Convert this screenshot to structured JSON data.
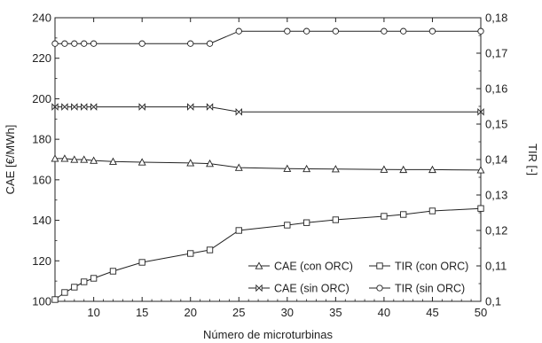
{
  "chart_data": {
    "type": "line",
    "title": "",
    "xlabel": "Número de microturbinas",
    "ylabel_left": "CAE [€/MWh]",
    "ylabel_right": "TIR [-]",
    "xlim": [
      6,
      50
    ],
    "ylim_left": [
      100,
      240
    ],
    "ylim_right": [
      0.1,
      0.18
    ],
    "x_ticks": [
      10,
      15,
      20,
      25,
      30,
      35,
      40,
      45,
      50
    ],
    "y_left_ticks": [
      100,
      120,
      140,
      160,
      180,
      200,
      220,
      240
    ],
    "y_right_ticks": [
      "0,1",
      "0,11",
      "0,12",
      "0,13",
      "0,14",
      "0,15",
      "0,16",
      "0,17",
      "0,18"
    ],
    "grid": false,
    "legend": "bottom-right",
    "series": [
      {
        "name": "CAE (con ORC)",
        "axis": "left",
        "marker": "triangle",
        "x": [
          6,
          7,
          8,
          9,
          10,
          12,
          15,
          20,
          22,
          25,
          30,
          32,
          35,
          40,
          42,
          45,
          50
        ],
        "y": [
          170.5,
          170.5,
          170,
          170,
          169.5,
          169,
          168.7,
          168.3,
          168,
          166,
          165.5,
          165.4,
          165.3,
          165.1,
          165,
          165,
          164.8
        ]
      },
      {
        "name": "TIR (con ORC)",
        "axis": "right",
        "marker": "square",
        "x": [
          6,
          7,
          8,
          9,
          10,
          12,
          15,
          20,
          22,
          25,
          30,
          32,
          35,
          40,
          42,
          45,
          50
        ],
        "y": [
          0.1005,
          0.1025,
          0.104,
          0.1055,
          0.1065,
          0.1085,
          0.111,
          0.1135,
          0.1145,
          0.12,
          0.1215,
          0.1222,
          0.123,
          0.124,
          0.1245,
          0.1255,
          0.1262
        ]
      },
      {
        "name": "CAE (sin ORC)",
        "axis": "left",
        "marker": "bowtie",
        "x": [
          6,
          7,
          8,
          9,
          10,
          15,
          20,
          22,
          25,
          50
        ],
        "y": [
          196,
          196,
          196,
          196,
          196,
          196,
          196,
          196,
          193.5,
          193.5
        ]
      },
      {
        "name": "TIR (sin ORC)",
        "axis": "right",
        "marker": "circle",
        "x": [
          6,
          7,
          8,
          9,
          10,
          15,
          20,
          22,
          25,
          30,
          32,
          35,
          40,
          42,
          45,
          50
        ],
        "y": [
          0.1727,
          0.1727,
          0.1727,
          0.1727,
          0.1727,
          0.1727,
          0.1727,
          0.1727,
          0.1762,
          0.1762,
          0.1762,
          0.1762,
          0.1762,
          0.1762,
          0.1762,
          0.1762
        ]
      }
    ]
  }
}
